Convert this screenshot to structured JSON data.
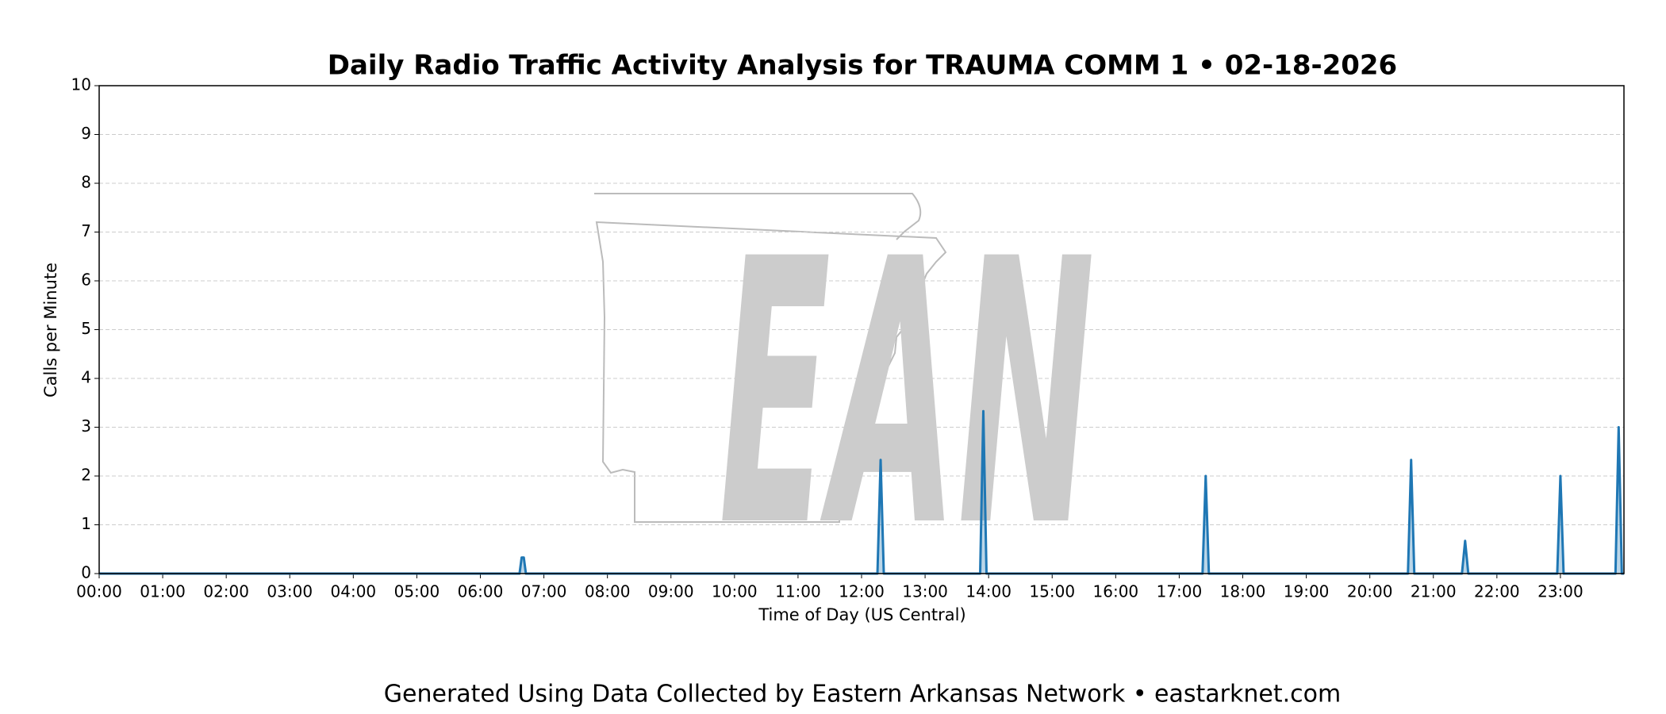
{
  "chart_data": {
    "type": "line",
    "title": "Daily Radio Traffic Activity Analysis for TRAUMA COMM 1 • 02-18-2026",
    "x_label": "Time of Day (US Central)",
    "y_label": "Calls per Minute",
    "footer": "Generated Using Data Collected by Eastern Arkansas Network • eastarknet.com",
    "watermark": "EAN",
    "xlim": [
      0,
      1440
    ],
    "xticks": [
      {
        "value": 0,
        "label": "00:00"
      },
      {
        "value": 60,
        "label": "01:00"
      },
      {
        "value": 120,
        "label": "02:00"
      },
      {
        "value": 180,
        "label": "03:00"
      },
      {
        "value": 240,
        "label": "04:00"
      },
      {
        "value": 300,
        "label": "05:00"
      },
      {
        "value": 360,
        "label": "06:00"
      },
      {
        "value": 420,
        "label": "07:00"
      },
      {
        "value": 480,
        "label": "08:00"
      },
      {
        "value": 540,
        "label": "09:00"
      },
      {
        "value": 600,
        "label": "10:00"
      },
      {
        "value": 660,
        "label": "11:00"
      },
      {
        "value": 720,
        "label": "12:00"
      },
      {
        "value": 780,
        "label": "13:00"
      },
      {
        "value": 840,
        "label": "14:00"
      },
      {
        "value": 900,
        "label": "15:00"
      },
      {
        "value": 960,
        "label": "16:00"
      },
      {
        "value": 1020,
        "label": "17:00"
      },
      {
        "value": 1080,
        "label": "18:00"
      },
      {
        "value": 1140,
        "label": "19:00"
      },
      {
        "value": 1200,
        "label": "20:00"
      },
      {
        "value": 1260,
        "label": "21:00"
      },
      {
        "value": 1320,
        "label": "22:00"
      },
      {
        "value": 1380,
        "label": "23:00"
      }
    ],
    "ylim": [
      0,
      10
    ],
    "yticks": [
      0,
      1,
      2,
      3,
      4,
      5,
      6,
      7,
      8,
      9,
      10
    ],
    "grid": true,
    "series": [
      {
        "name": "Calls per Minute",
        "color": "#1f77b4",
        "x": [
          0,
          397,
          399,
          401,
          403,
          735,
          738,
          741,
          832,
          835,
          838,
          1042,
          1045,
          1048,
          1236,
          1239,
          1242,
          1287,
          1290,
          1293,
          1377,
          1380,
          1383,
          1432,
          1435,
          1438,
          1440
        ],
        "values": [
          0,
          0,
          0.33,
          0.33,
          0,
          0,
          2.33,
          0,
          0,
          3.33,
          0,
          0,
          2,
          0,
          0,
          2.33,
          0,
          0,
          0.67,
          0,
          0,
          2,
          0,
          0,
          3,
          0,
          0
        ]
      }
    ]
  }
}
